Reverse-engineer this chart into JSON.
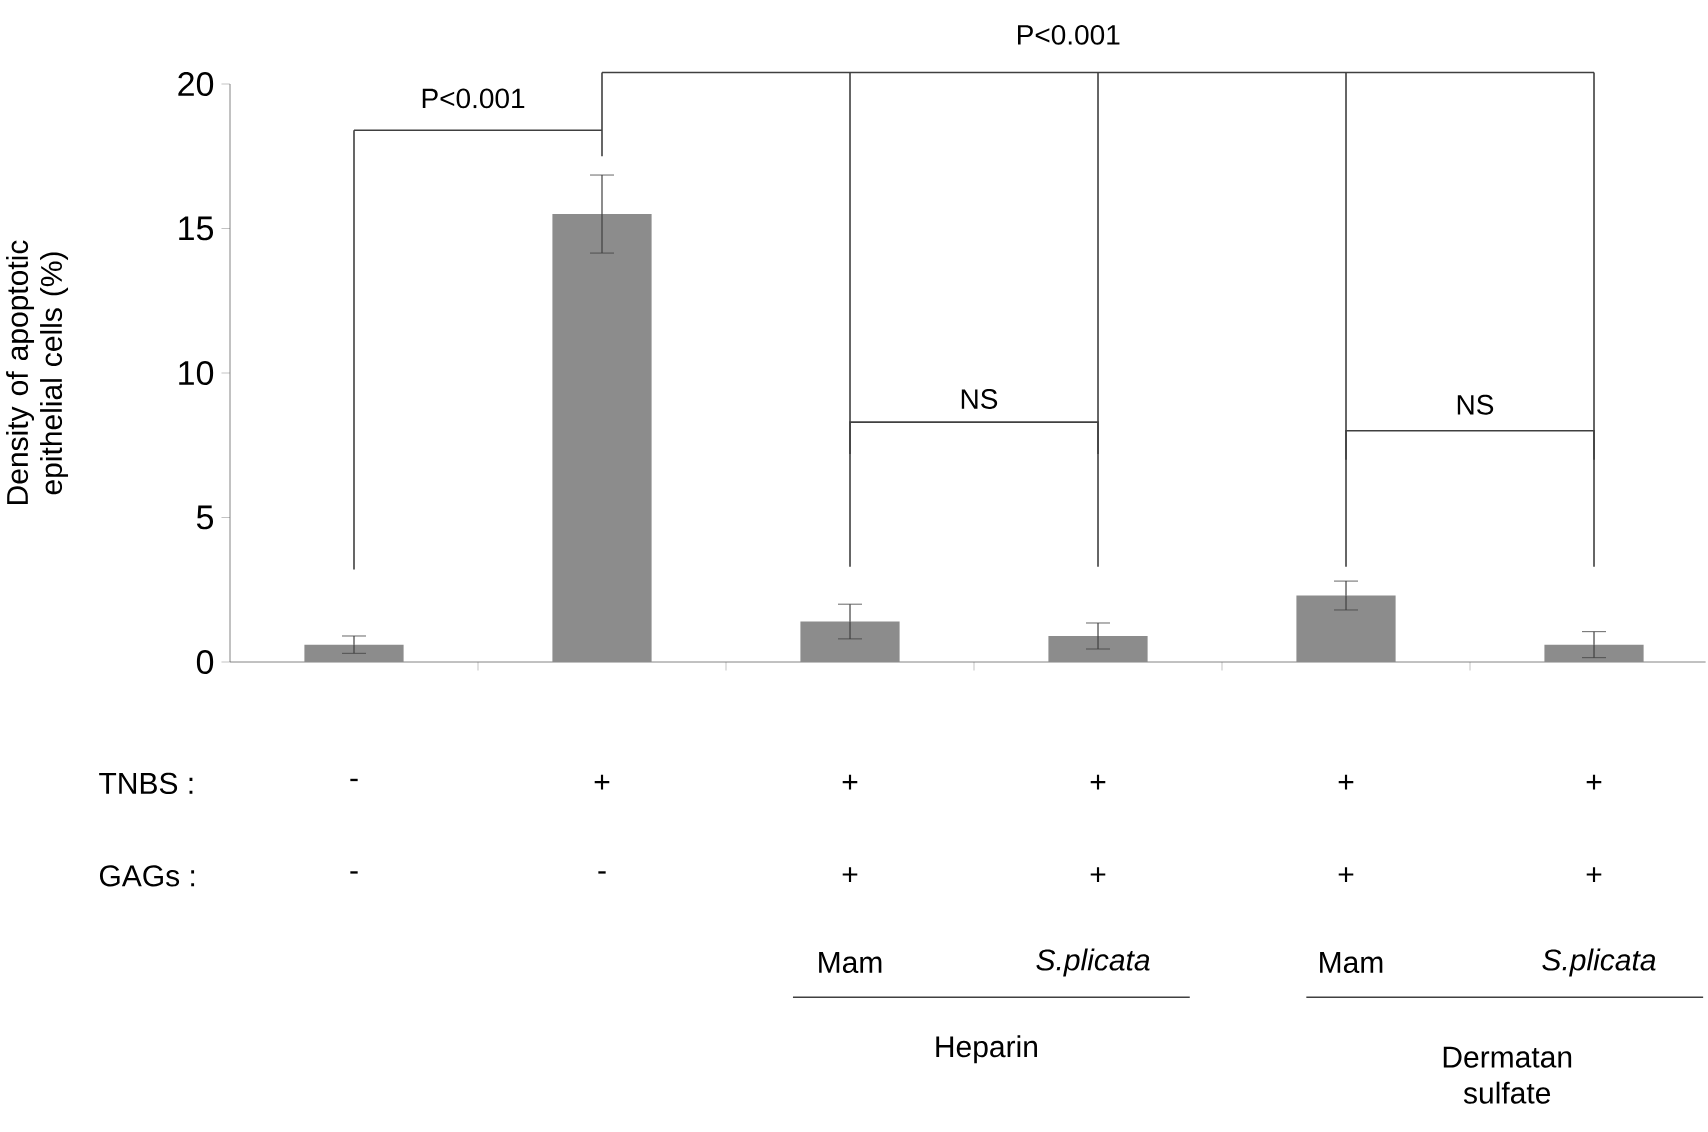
{
  "chart_data": {
    "type": "bar",
    "ylabel": "Density of apoptotic epithelial cells (%)",
    "categories": [
      null,
      null,
      null,
      null,
      null,
      null
    ],
    "values": [
      0.6,
      15.5,
      1.4,
      0.9,
      2.3,
      0.6
    ],
    "errors": [
      0.3,
      1.35,
      0.6,
      0.45,
      0.5,
      0.45
    ],
    "color": "#8c8c8c",
    "ylim": [
      0,
      20
    ],
    "yticks": [
      0,
      5,
      10,
      15,
      20
    ],
    "annotations": [
      "P<0.001",
      "P<0.001",
      "NS",
      "NS",
      "TNBS :",
      "-",
      "+",
      "+",
      "+",
      "+",
      "+",
      "GAGs :",
      "-",
      "-",
      "+",
      "+",
      "+",
      "+",
      "Mam",
      "*S.plicata*",
      "Mam",
      "*S.plicata*",
      "Heparin",
      "Dermatan sulfate"
    ]
  }
}
